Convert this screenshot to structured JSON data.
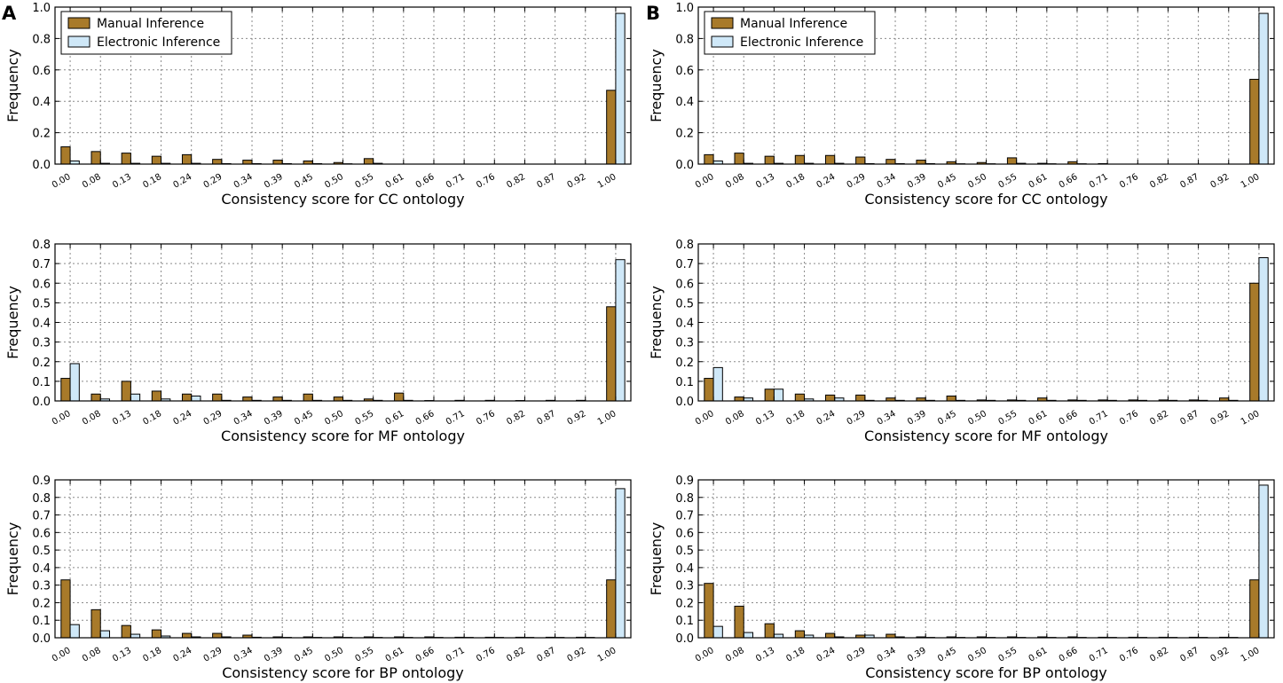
{
  "panel_labels": [
    "A",
    "B"
  ],
  "chart_data": [
    {
      "type": "bar",
      "panel": "A",
      "categories": [
        "0.00",
        "0.08",
        "0.13",
        "0.18",
        "0.24",
        "0.29",
        "0.34",
        "0.39",
        "0.45",
        "0.50",
        "0.55",
        "0.61",
        "0.66",
        "0.71",
        "0.76",
        "0.82",
        "0.87",
        "0.92",
        "1.00"
      ],
      "series": [
        {
          "name": "Manual Inference",
          "values": [
            0.11,
            0.08,
            0.07,
            0.05,
            0.06,
            0.03,
            0.025,
            0.025,
            0.02,
            0.01,
            0.035,
            0,
            0,
            0,
            0,
            0,
            0,
            0,
            0.47
          ]
        },
        {
          "name": "Electronic Inference",
          "values": [
            0.02,
            0.005,
            0.005,
            0.005,
            0.005,
            0.003,
            0.003,
            0.003,
            0.003,
            0.002,
            0.005,
            0,
            0,
            0,
            0,
            0,
            0,
            0,
            0.96
          ]
        }
      ],
      "xlabel": "Consistency score for CC ontology",
      "ylabel": "Frequency",
      "ylim": [
        0,
        1.0
      ],
      "yticks": [
        "0.0",
        "0.2",
        "0.4",
        "0.6",
        "0.8",
        "1.0"
      ],
      "grid": true,
      "legend": "top-left"
    },
    {
      "type": "bar",
      "panel": "A",
      "categories": [
        "0.00",
        "0.08",
        "0.13",
        "0.18",
        "0.24",
        "0.29",
        "0.34",
        "0.39",
        "0.45",
        "0.50",
        "0.55",
        "0.61",
        "0.66",
        "0.71",
        "0.76",
        "0.82",
        "0.87",
        "0.92",
        "1.00"
      ],
      "series": [
        {
          "name": "Manual Inference",
          "values": [
            0.115,
            0.035,
            0.1,
            0.05,
            0.035,
            0.035,
            0.02,
            0.02,
            0.035,
            0.02,
            0.01,
            0.04,
            0.002,
            0.003,
            0.003,
            0.002,
            0.003,
            0.003,
            0.48
          ]
        },
        {
          "name": "Electronic Inference",
          "values": [
            0.19,
            0.01,
            0.035,
            0.01,
            0.025,
            0.003,
            0.003,
            0.003,
            0.003,
            0.003,
            0.003,
            0.003,
            0,
            0,
            0,
            0,
            0,
            0,
            0.72
          ]
        }
      ],
      "xlabel": "Consistency score for MF ontology",
      "ylabel": "Frequency",
      "ylim": [
        0,
        0.8
      ],
      "yticks": [
        "0.0",
        "0.1",
        "0.2",
        "0.3",
        "0.4",
        "0.5",
        "0.6",
        "0.7",
        "0.8"
      ],
      "grid": true
    },
    {
      "type": "bar",
      "panel": "A",
      "categories": [
        "0.00",
        "0.08",
        "0.13",
        "0.18",
        "0.24",
        "0.29",
        "0.34",
        "0.39",
        "0.45",
        "0.50",
        "0.55",
        "0.61",
        "0.66",
        "0.71",
        "0.76",
        "0.82",
        "0.87",
        "0.92",
        "1.00"
      ],
      "series": [
        {
          "name": "Manual Inference",
          "values": [
            0.33,
            0.16,
            0.07,
            0.045,
            0.025,
            0.025,
            0.015,
            0.005,
            0.005,
            0.005,
            0.005,
            0.005,
            0.005,
            0.003,
            0.003,
            0.003,
            0.003,
            0.003,
            0.33
          ]
        },
        {
          "name": "Electronic Inference",
          "values": [
            0.075,
            0.04,
            0.02,
            0.01,
            0.005,
            0.005,
            0.003,
            0.002,
            0.002,
            0.002,
            0.002,
            0.002,
            0.002,
            0.002,
            0.002,
            0.002,
            0.002,
            0.002,
            0.85
          ]
        }
      ],
      "xlabel": "Consistency score for BP ontology",
      "ylabel": "Frequency",
      "ylim": [
        0,
        0.9
      ],
      "yticks": [
        "0.0",
        "0.1",
        "0.2",
        "0.3",
        "0.4",
        "0.5",
        "0.6",
        "0.7",
        "0.8",
        "0.9"
      ],
      "grid": true
    },
    {
      "type": "bar",
      "panel": "B",
      "categories": [
        "0.00",
        "0.08",
        "0.13",
        "0.18",
        "0.24",
        "0.29",
        "0.34",
        "0.39",
        "0.45",
        "0.50",
        "0.55",
        "0.61",
        "0.66",
        "0.71",
        "0.76",
        "0.82",
        "0.87",
        "0.92",
        "1.00"
      ],
      "series": [
        {
          "name": "Manual Inference",
          "values": [
            0.06,
            0.07,
            0.05,
            0.055,
            0.055,
            0.045,
            0.03,
            0.025,
            0.015,
            0.01,
            0.04,
            0.005,
            0.015,
            0.003,
            0,
            0,
            0,
            0,
            0.54
          ]
        },
        {
          "name": "Electronic Inference",
          "values": [
            0.02,
            0.005,
            0.005,
            0.005,
            0.005,
            0.003,
            0.003,
            0.003,
            0.002,
            0.002,
            0.005,
            0.002,
            0.002,
            0,
            0,
            0,
            0,
            0,
            0.96
          ]
        }
      ],
      "xlabel": "Consistency score for CC ontology",
      "ylabel": "Frequency",
      "ylim": [
        0,
        1.0
      ],
      "yticks": [
        "0.0",
        "0.2",
        "0.4",
        "0.6",
        "0.8",
        "1.0"
      ],
      "grid": true,
      "legend": "top-left"
    },
    {
      "type": "bar",
      "panel": "B",
      "categories": [
        "0.00",
        "0.08",
        "0.13",
        "0.18",
        "0.24",
        "0.29",
        "0.34",
        "0.39",
        "0.45",
        "0.50",
        "0.55",
        "0.61",
        "0.66",
        "0.71",
        "0.76",
        "0.82",
        "0.87",
        "0.92",
        "1.00"
      ],
      "series": [
        {
          "name": "Manual Inference",
          "values": [
            0.115,
            0.02,
            0.06,
            0.035,
            0.03,
            0.03,
            0.015,
            0.015,
            0.025,
            0.005,
            0.005,
            0.015,
            0.005,
            0.005,
            0.005,
            0.005,
            0.005,
            0.015,
            0.6
          ]
        },
        {
          "name": "Electronic Inference",
          "values": [
            0.17,
            0.015,
            0.06,
            0.01,
            0.015,
            0.003,
            0.003,
            0.003,
            0.003,
            0.003,
            0.003,
            0.003,
            0.003,
            0.003,
            0.003,
            0.003,
            0.003,
            0.003,
            0.73
          ]
        }
      ],
      "xlabel": "Consistency score for MF ontology",
      "ylabel": "Frequency",
      "ylim": [
        0,
        0.8
      ],
      "yticks": [
        "0.0",
        "0.1",
        "0.2",
        "0.3",
        "0.4",
        "0.5",
        "0.6",
        "0.7",
        "0.8"
      ],
      "grid": true
    },
    {
      "type": "bar",
      "panel": "B",
      "categories": [
        "0.00",
        "0.08",
        "0.13",
        "0.18",
        "0.24",
        "0.29",
        "0.34",
        "0.39",
        "0.45",
        "0.50",
        "0.55",
        "0.61",
        "0.66",
        "0.71",
        "0.76",
        "0.82",
        "0.87",
        "0.92",
        "1.00"
      ],
      "series": [
        {
          "name": "Manual Inference",
          "values": [
            0.31,
            0.18,
            0.08,
            0.04,
            0.025,
            0.015,
            0.02,
            0.005,
            0.005,
            0.005,
            0.005,
            0.005,
            0.005,
            0.003,
            0.003,
            0.003,
            0.003,
            0.003,
            0.33
          ]
        },
        {
          "name": "Electronic Inference",
          "values": [
            0.065,
            0.03,
            0.02,
            0.015,
            0.005,
            0.015,
            0.005,
            0.002,
            0.002,
            0.002,
            0.002,
            0.002,
            0.002,
            0.002,
            0.002,
            0.002,
            0.002,
            0.002,
            0.87
          ]
        }
      ],
      "xlabel": "Consistency score for BP ontology",
      "ylabel": "Frequency",
      "ylim": [
        0,
        0.9
      ],
      "yticks": [
        "0.0",
        "0.1",
        "0.2",
        "0.3",
        "0.4",
        "0.5",
        "0.6",
        "0.7",
        "0.8",
        "0.9"
      ],
      "grid": true
    }
  ],
  "colors": {
    "manual": "#a87a2a",
    "electronic": "#cfe8f8",
    "edge": "#000000",
    "grid": "#8a8a8a"
  }
}
